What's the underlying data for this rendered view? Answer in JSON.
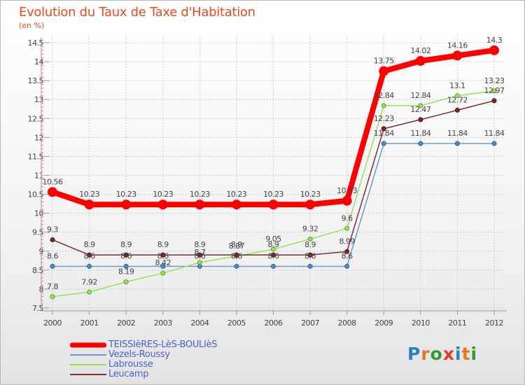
{
  "title": "Evolution du Taux de Taxe d'Habitation",
  "unit": "(en %)",
  "logo": {
    "text": "Proxiti",
    "letters": [
      "P",
      "r",
      "o",
      "x",
      "i",
      "t",
      "i"
    ],
    "colors": [
      "#2b80c8",
      "#e07a1c",
      "#2f9a2f",
      "#e03a2a",
      "#2b80c8",
      "#e07a1c",
      "#2f9a2f"
    ]
  },
  "chart_data": {
    "type": "line",
    "title": "Evolution du Taux de Taxe d'Habitation",
    "ylabel": "(en %)",
    "xlabel": "",
    "ylim": [
      7.5,
      14.5
    ],
    "yticks": [
      "7.5",
      "8",
      "8.5",
      "9",
      "9.5",
      "10",
      "10.5",
      "11",
      "11.5",
      "12",
      "12.5",
      "13",
      "13.5",
      "14",
      "14.5"
    ],
    "x": [
      "2000",
      "2001",
      "2002",
      "2003",
      "2004",
      "2005",
      "2006",
      "2007",
      "2008",
      "2009",
      "2010",
      "2011",
      "2012"
    ],
    "series": [
      {
        "name": "TEISSIèRES-LèS-BOULIèS",
        "color": "#ff0000",
        "values": [
          10.56,
          10.23,
          10.23,
          10.23,
          10.23,
          10.23,
          10.23,
          10.23,
          10.33,
          13.75,
          14.02,
          14.16,
          14.3
        ],
        "labels": [
          "10.56",
          "10.23",
          "10.23",
          "10.23",
          "10.23",
          "10.23",
          "10.23",
          "10.23",
          "10.33",
          "13.75",
          "14.02",
          "14.16",
          "14.3"
        ]
      },
      {
        "name": "Vezels-Roussy",
        "color": "#6d9ac7",
        "values": [
          8.6,
          8.6,
          8.6,
          8.6,
          8.6,
          8.6,
          8.6,
          8.6,
          8.6,
          11.84,
          11.84,
          11.84,
          11.84
        ],
        "labels": [
          "8.6",
          "8.6",
          "8.6",
          "8.6",
          "8.6",
          "8.6",
          "8.6",
          "8.6",
          "8.6",
          "11.84",
          "11.84",
          "11.84",
          "11.84"
        ]
      },
      {
        "name": "Labrousse",
        "color": "#99e05a",
        "values": [
          7.8,
          7.92,
          8.19,
          8.42,
          8.7,
          8.87,
          9.05,
          9.32,
          9.6,
          12.84,
          12.84,
          13.1,
          13.23
        ],
        "labels": [
          "7.8",
          "7.92",
          "8.19",
          "8.42",
          "8.7",
          "8.87",
          "9.05",
          "9.32",
          "9.6",
          "12.84",
          "12.84",
          "13.1",
          "13.23"
        ]
      },
      {
        "name": "Leucamp",
        "color": "#7a3030",
        "values": [
          9.3,
          8.9,
          8.9,
          8.9,
          8.9,
          8.9,
          8.9,
          8.9,
          8.99,
          12.23,
          12.47,
          12.72,
          12.97
        ],
        "labels": [
          "9.3",
          "8.9",
          "8.9",
          "8.9",
          "8.9",
          "8.9",
          "8.9",
          "8.9",
          "8.99",
          "12.23",
          "12.47",
          "12.72",
          "12.97"
        ]
      }
    ]
  }
}
